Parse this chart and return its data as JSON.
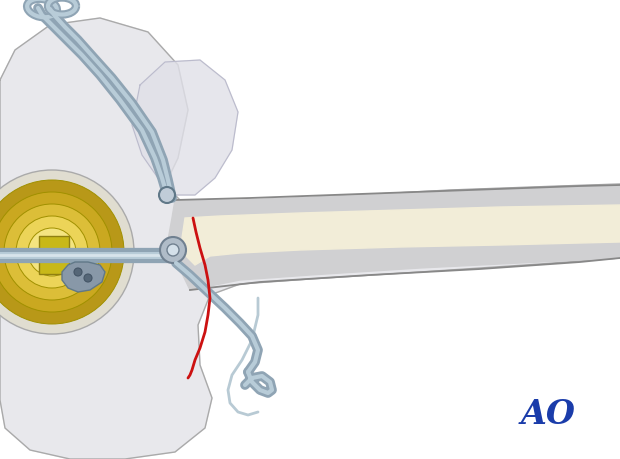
{
  "bg": "#ffffff",
  "ao_color": "#1a3caa",
  "tissue_fill": "#e8e8ec",
  "tissue_edge": "#aaaaaa",
  "tissue_fill2": "#dcdce4",
  "shaft_fill": "#d8d8da",
  "shaft_edge": "#888888",
  "marrow_fill": "#f2edd8",
  "head_fill": "#e4e0d4",
  "head_edge": "#999999",
  "gold1": "#b89818",
  "gold2": "#caa820",
  "gold3": "#dcbe38",
  "gold4": "#ecd458",
  "gold5": "#f4e480",
  "gold6": "#faf2b0",
  "implant_fill": "#8fa4b4",
  "implant_light": "#b8ccd8",
  "implant_edge": "#607888",
  "cable_color": "#9ab0bc",
  "wire_color": "#b8cad4",
  "fracture_red": "#cc1111"
}
